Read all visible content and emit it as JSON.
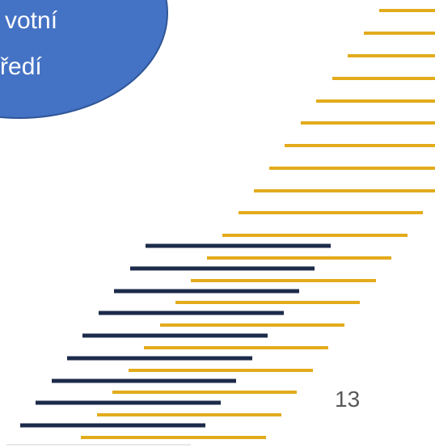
{
  "callout": {
    "line1": "votní",
    "line2": "ostředí"
  },
  "slide_number": "13",
  "colors": {
    "callout_fill": "#4472c4",
    "callout_border": "#2f5597",
    "gold": "#e3ab1c",
    "navy": "#1c2b4a"
  },
  "decor": {
    "stripe_style": "diagonal staircase of horizontal gold and navy bars",
    "gold_bar_count": 19,
    "navy_bar_count": 9
  }
}
